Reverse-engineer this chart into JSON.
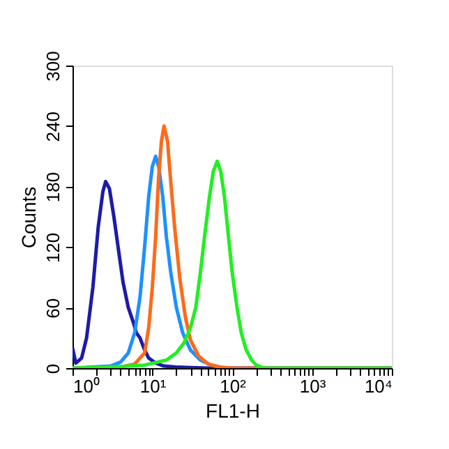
{
  "chart_data": {
    "type": "line",
    "xlabel": "FL1-H",
    "ylabel": "Counts",
    "log": "x",
    "xlim": [
      1,
      10000
    ],
    "ylim": [
      0,
      300
    ],
    "xticks": [
      {
        "value": 1,
        "label": "10⁰"
      },
      {
        "value": 2,
        "label": null
      },
      {
        "value": 3,
        "label": null
      },
      {
        "value": 4,
        "label": null
      },
      {
        "value": 5,
        "label": null
      },
      {
        "value": 6,
        "label": null
      },
      {
        "value": 7,
        "label": null
      },
      {
        "value": 8,
        "label": null
      },
      {
        "value": 9,
        "label": null
      },
      {
        "value": 10,
        "label": "10¹"
      },
      {
        "value": 20,
        "label": null
      },
      {
        "value": 30,
        "label": null
      },
      {
        "value": 40,
        "label": null
      },
      {
        "value": 50,
        "label": null
      },
      {
        "value": 60,
        "label": null
      },
      {
        "value": 70,
        "label": null
      },
      {
        "value": 80,
        "label": null
      },
      {
        "value": 90,
        "label": null
      },
      {
        "value": 100,
        "label": "10²"
      },
      {
        "value": 200,
        "label": null
      },
      {
        "value": 300,
        "label": null
      },
      {
        "value": 400,
        "label": null
      },
      {
        "value": 500,
        "label": null
      },
      {
        "value": 600,
        "label": null
      },
      {
        "value": 700,
        "label": null
      },
      {
        "value": 800,
        "label": null
      },
      {
        "value": 900,
        "label": null
      },
      {
        "value": 1000,
        "label": "10³"
      },
      {
        "value": 2000,
        "label": null
      },
      {
        "value": 3000,
        "label": null
      },
      {
        "value": 4000,
        "label": null
      },
      {
        "value": 5000,
        "label": null
      },
      {
        "value": 6000,
        "label": null
      },
      {
        "value": 7000,
        "label": null
      },
      {
        "value": 8000,
        "label": null
      },
      {
        "value": 9000,
        "label": null
      },
      {
        "value": 10000,
        "label": "10⁴"
      }
    ],
    "yticks": [
      0,
      60,
      120,
      180,
      240,
      300
    ],
    "grid": false,
    "marker": "none",
    "line_style": "solid",
    "series": [
      {
        "color": "#1c1ca8",
        "x": [
          1,
          1.1,
          1.3,
          1.5,
          1.8,
          2.1,
          2.4,
          2.6,
          2.9,
          3.3,
          3.8,
          4.3,
          5,
          5.8,
          6.3,
          7,
          8,
          9,
          11,
          14,
          20,
          50,
          10000
        ],
        "values": [
          20,
          5,
          10,
          30,
          80,
          140,
          175,
          185,
          178,
          150,
          115,
          85,
          60,
          45,
          35,
          30,
          18,
          10,
          5,
          2,
          1,
          0,
          0
        ]
      },
      {
        "color": "#1e90ff",
        "x": [
          1,
          3,
          4,
          5,
          6,
          7,
          8,
          9,
          10,
          11,
          12,
          13.5,
          15,
          17,
          20,
          24,
          30,
          40,
          55,
          80,
          10000
        ],
        "values": [
          0,
          2,
          6,
          15,
          35,
          70,
          120,
          170,
          200,
          210,
          200,
          170,
          130,
          95,
          60,
          35,
          18,
          8,
          3,
          0,
          0
        ]
      },
      {
        "color": "#ff6a1a",
        "x": [
          1,
          4,
          6,
          8,
          9,
          10,
          11,
          12,
          13,
          14,
          15.5,
          17,
          19,
          22,
          26,
          30,
          38,
          50,
          70,
          100,
          10000
        ],
        "values": [
          0,
          1,
          4,
          15,
          40,
          80,
          130,
          190,
          225,
          240,
          225,
          185,
          140,
          90,
          50,
          28,
          12,
          4,
          1,
          0,
          0
        ]
      },
      {
        "color": "#22ee22",
        "x": [
          1,
          3,
          8,
          15,
          20,
          25,
          30,
          35,
          40,
          45,
          52,
          58,
          65,
          72,
          80,
          90,
          100,
          115,
          130,
          150,
          175,
          200,
          250,
          10000
        ],
        "values": [
          0,
          1,
          3,
          8,
          15,
          25,
          40,
          60,
          95,
          130,
          170,
          195,
          205,
          195,
          170,
          130,
          95,
          60,
          35,
          18,
          8,
          3,
          0,
          0
        ]
      }
    ]
  }
}
